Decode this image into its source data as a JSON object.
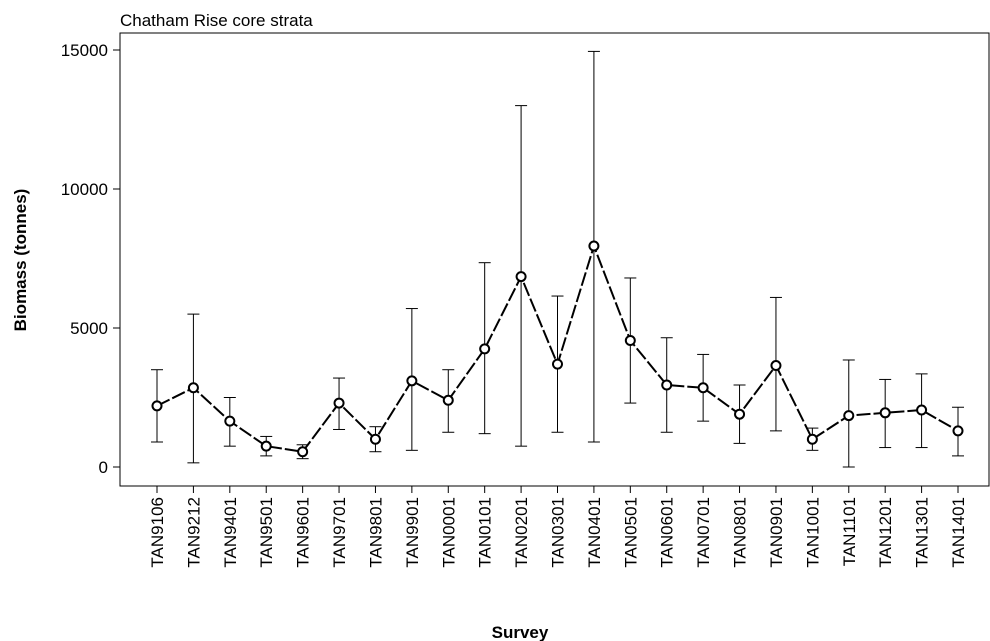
{
  "chart_data": {
    "type": "line",
    "title": "Chatham Rise core strata",
    "x_label": "Survey",
    "y_label": "Biomass (tonnes)",
    "categories": [
      "TAN9106",
      "TAN9212",
      "TAN9401",
      "TAN9501",
      "TAN9601",
      "TAN9701",
      "TAN9801",
      "TAN9901",
      "TAN0001",
      "TAN0101",
      "TAN0201",
      "TAN0301",
      "TAN0401",
      "TAN0501",
      "TAN0601",
      "TAN0701",
      "TAN0801",
      "TAN0901",
      "TAN1001",
      "TAN1101",
      "TAN1201",
      "TAN1301",
      "TAN1401"
    ],
    "series": [
      {
        "color": "#000000",
        "values": [
          2200,
          2850,
          1650,
          750,
          550,
          2300,
          1000,
          3100,
          2400,
          4250,
          6850,
          3700,
          7950,
          4550,
          2950,
          2850,
          1900,
          3650,
          1000,
          1850,
          1950,
          2050,
          1300
        ],
        "lower": [
          900,
          150,
          750,
          400,
          300,
          1350,
          550,
          600,
          1250,
          1200,
          750,
          1250,
          900,
          2300,
          1250,
          1650,
          850,
          1300,
          600,
          0,
          700,
          700,
          400
        ],
        "upper": [
          3500,
          5500,
          2500,
          1100,
          800,
          3200,
          1450,
          5700,
          3500,
          7350,
          13000,
          6150,
          14950,
          6800,
          4650,
          4050,
          2950,
          6100,
          1400,
          3850,
          3150,
          3350,
          2150
        ]
      }
    ],
    "ylim": [
      -683,
      15612
    ],
    "yticks": [
      0,
      5000,
      10000,
      15000
    ]
  }
}
